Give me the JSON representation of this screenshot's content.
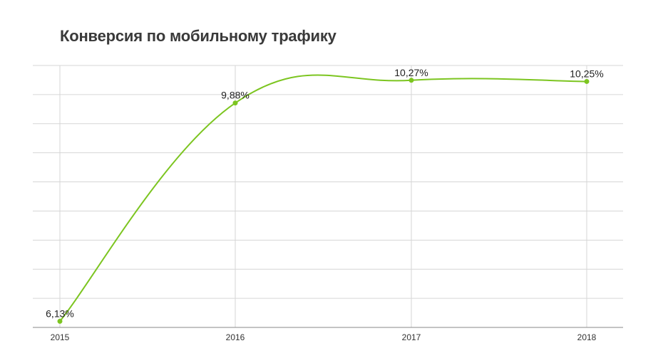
{
  "chart_data": {
    "type": "line",
    "title": "Конверсия по мобильному трафику",
    "xlabel": "",
    "ylabel": "",
    "categories": [
      "2015",
      "2016",
      "2017",
      "2018"
    ],
    "values": [
      6.13,
      9.88,
      10.27,
      10.25
    ],
    "data_labels": [
      "6,13%",
      "9,88%",
      "10,27%",
      "10,25%"
    ],
    "ylim": [
      6.0,
      10.5
    ],
    "grid": true,
    "legend": "none",
    "colors": {
      "line": "#7cc520",
      "grid": "#d6d6d6",
      "title": "#3a3a3a"
    }
  }
}
